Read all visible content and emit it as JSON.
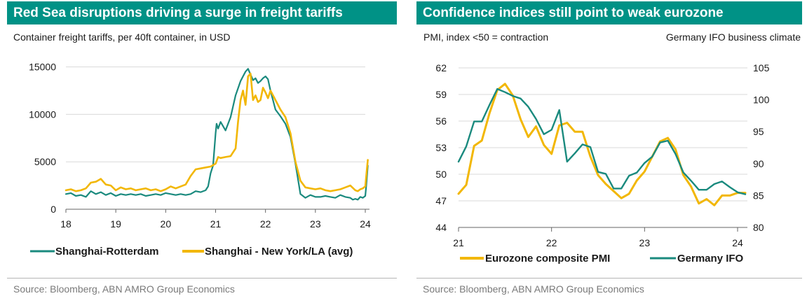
{
  "left": {
    "title": "Red Sea disruptions driving a surge in freight tariffs",
    "subtitle": "Container freight tariffs, per 40ft container, in USD",
    "source": "Source: Bloomberg, ABN AMRO Group Economics"
  },
  "right": {
    "title": "Confidence indices still point to weak eurozone",
    "subtitle_left": "PMI, index <50 = contraction",
    "subtitle_right": "Germany IFO business climate",
    "source": "Source: Bloomberg, ABN AMRO Group Economics"
  },
  "colors": {
    "accent": "#009286",
    "teal": "#1a8a7e",
    "gold": "#f2b705",
    "axis": "#666666"
  },
  "chart_data": [
    {
      "type": "line",
      "title": "Red Sea disruptions driving a surge in freight tariffs",
      "subtitle": "Container freight tariffs, per 40ft container, in USD",
      "xlabel": "",
      "ylabel": "",
      "xlim": [
        18,
        24.4
      ],
      "ylim": [
        0,
        16000
      ],
      "x_ticks": [
        18,
        19,
        20,
        21,
        22,
        23,
        24
      ],
      "x_tick_labels": [
        "18",
        "19",
        "20",
        "21",
        "22",
        "23",
        "24"
      ],
      "y_ticks": [
        0,
        5000,
        10000,
        15000
      ],
      "y_tick_labels": [
        "0",
        "5000",
        "10000",
        "15000"
      ],
      "grid": "horizontal",
      "legend": "bottom",
      "series": [
        {
          "name": "Shanghai-Rotterdam",
          "color": "#1a8a7e",
          "x": [
            18.0,
            18.1,
            18.2,
            18.3,
            18.4,
            18.5,
            18.6,
            18.7,
            18.8,
            18.9,
            19.0,
            19.1,
            19.2,
            19.3,
            19.4,
            19.5,
            19.6,
            19.7,
            19.8,
            19.9,
            20.0,
            20.1,
            20.2,
            20.3,
            20.4,
            20.5,
            20.6,
            20.7,
            20.8,
            20.85,
            20.9,
            20.95,
            21.0,
            21.02,
            21.05,
            21.1,
            21.2,
            21.3,
            21.4,
            21.5,
            21.55,
            21.6,
            21.65,
            21.7,
            21.75,
            21.8,
            21.85,
            21.9,
            21.95,
            22.0,
            22.05,
            22.1,
            22.2,
            22.3,
            22.4,
            22.5,
            22.6,
            22.7,
            22.8,
            22.9,
            23.0,
            23.1,
            23.2,
            23.3,
            23.4,
            23.5,
            23.6,
            23.7,
            23.75,
            23.8,
            23.85,
            23.9,
            23.95,
            24.0,
            24.02,
            24.05
          ],
          "y": [
            1600,
            1700,
            1400,
            1500,
            1300,
            1900,
            1600,
            1800,
            1500,
            1700,
            1400,
            1600,
            1500,
            1600,
            1500,
            1600,
            1400,
            1500,
            1600,
            1500,
            1700,
            1600,
            1500,
            1600,
            1500,
            1600,
            1900,
            1800,
            2000,
            2400,
            3800,
            4600,
            8000,
            9000,
            8500,
            9200,
            8300,
            9700,
            12000,
            13500,
            14000,
            14500,
            14800,
            14200,
            13600,
            13800,
            13300,
            13500,
            13800,
            14000,
            13700,
            12500,
            10500,
            9800,
            9000,
            7600,
            4800,
            1600,
            1200,
            1500,
            1300,
            1300,
            1400,
            1300,
            1200,
            1500,
            1300,
            1200,
            1000,
            1100,
            1000,
            1300,
            1200,
            1400,
            2500,
            4600
          ]
        },
        {
          "name": "Shanghai - New York/LA (avg)",
          "color": "#f2b705",
          "x": [
            18.0,
            18.1,
            18.2,
            18.3,
            18.4,
            18.5,
            18.6,
            18.7,
            18.8,
            18.9,
            19.0,
            19.1,
            19.2,
            19.3,
            19.4,
            19.5,
            19.6,
            19.7,
            19.8,
            19.9,
            20.0,
            20.1,
            20.2,
            20.3,
            20.4,
            20.5,
            20.6,
            20.7,
            20.8,
            20.9,
            21.0,
            21.05,
            21.1,
            21.2,
            21.3,
            21.4,
            21.45,
            21.5,
            21.55,
            21.6,
            21.65,
            21.7,
            21.75,
            21.8,
            21.85,
            21.9,
            21.95,
            22.0,
            22.05,
            22.1,
            22.2,
            22.3,
            22.4,
            22.5,
            22.6,
            22.7,
            22.8,
            22.9,
            23.0,
            23.1,
            23.2,
            23.3,
            23.4,
            23.5,
            23.6,
            23.7,
            23.8,
            23.85,
            23.9,
            23.95,
            24.0,
            24.02,
            24.05
          ],
          "y": [
            2000,
            2100,
            1900,
            2000,
            2200,
            2800,
            2900,
            3200,
            2600,
            2500,
            2000,
            2300,
            2100,
            2200,
            2000,
            2100,
            2200,
            2000,
            2100,
            1900,
            2100,
            2400,
            2200,
            2400,
            2600,
            3500,
            4200,
            4300,
            4400,
            4500,
            4800,
            5500,
            5400,
            5500,
            5600,
            6400,
            9200,
            11500,
            12500,
            11000,
            14000,
            14300,
            11500,
            12000,
            11300,
            11500,
            12800,
            12300,
            11700,
            12500,
            11500,
            10500,
            9700,
            8000,
            5000,
            3000,
            2300,
            2200,
            2100,
            2200,
            2000,
            1900,
            2000,
            2100,
            2300,
            2500,
            2000,
            1900,
            2100,
            2200,
            2400,
            3500,
            5200
          ]
        }
      ]
    },
    {
      "type": "line",
      "title": "Confidence indices still point to weak eurozone",
      "xlabel": "",
      "ylabel": "PMI, index <50 = contraction",
      "y2label": "Germany IFO business climate",
      "xlim": [
        21,
        24.15
      ],
      "ylim": [
        44,
        62
      ],
      "y2lim": [
        80,
        105
      ],
      "x_ticks": [
        21,
        22,
        23,
        24
      ],
      "x_tick_labels": [
        "21",
        "22",
        "23",
        "24"
      ],
      "y_ticks": [
        44,
        47,
        50,
        53,
        56,
        59,
        62
      ],
      "y_tick_labels": [
        "44",
        "47",
        "50",
        "53",
        "56",
        "59",
        "62"
      ],
      "y2_ticks": [
        80,
        85,
        90,
        95,
        100,
        105
      ],
      "y2_tick_labels": [
        "80",
        "85",
        "90",
        "95",
        "100",
        "105"
      ],
      "grid": "horizontal",
      "legend": "bottom",
      "series": [
        {
          "name": "Eurozone composite PMI",
          "color": "#f2b705",
          "axis": "left",
          "x": [
            21.0,
            21.083,
            21.167,
            21.25,
            21.333,
            21.417,
            21.5,
            21.583,
            21.667,
            21.75,
            21.833,
            21.917,
            22.0,
            22.083,
            22.167,
            22.25,
            22.333,
            22.417,
            22.5,
            22.583,
            22.667,
            22.75,
            22.833,
            22.917,
            23.0,
            23.083,
            23.167,
            23.25,
            23.333,
            23.417,
            23.5,
            23.583,
            23.667,
            23.75,
            23.833,
            23.917,
            24.0,
            24.083
          ],
          "y": [
            47.8,
            48.8,
            53.2,
            53.8,
            56.9,
            59.5,
            60.2,
            58.9,
            56.2,
            54.2,
            55.4,
            53.3,
            52.3,
            55.5,
            55.8,
            54.8,
            54.8,
            52.0,
            49.9,
            48.9,
            48.1,
            47.3,
            47.8,
            49.3,
            50.3,
            52.0,
            53.7,
            54.1,
            52.8,
            49.9,
            48.6,
            46.7,
            47.2,
            46.5,
            47.6,
            47.6,
            47.9,
            47.9
          ]
        },
        {
          "name": "Germany IFO",
          "color": "#1a8a7e",
          "axis": "right",
          "x": [
            21.0,
            21.083,
            21.167,
            21.25,
            21.333,
            21.417,
            21.5,
            21.583,
            21.667,
            21.75,
            21.833,
            21.917,
            22.0,
            22.083,
            22.167,
            22.25,
            22.333,
            22.417,
            22.5,
            22.583,
            22.667,
            22.75,
            22.833,
            22.917,
            23.0,
            23.083,
            23.167,
            23.25,
            23.333,
            23.417,
            23.5,
            23.583,
            23.667,
            23.75,
            23.833,
            23.917,
            24.0,
            24.083
          ],
          "y": [
            90.3,
            92.7,
            96.6,
            96.6,
            99.2,
            101.7,
            101.2,
            100.6,
            100.2,
            98.9,
            97.0,
            94.6,
            95.3,
            98.4,
            90.3,
            91.6,
            93.0,
            92.6,
            88.7,
            88.4,
            86.1,
            86.1,
            88.1,
            88.6,
            90.1,
            91.1,
            93.3,
            93.6,
            91.5,
            88.6,
            87.3,
            85.9,
            85.9,
            86.8,
            87.2,
            86.3,
            85.5,
            85.2
          ]
        }
      ]
    }
  ]
}
